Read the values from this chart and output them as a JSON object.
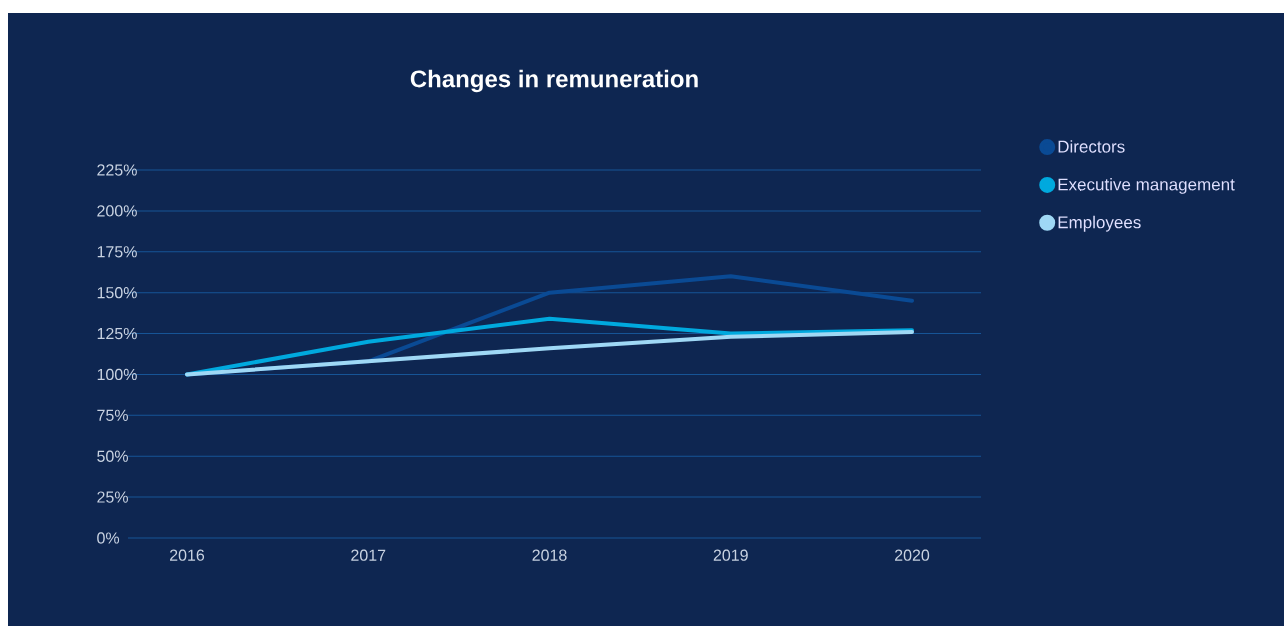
{
  "chart_data": {
    "type": "line",
    "title": "Changes in remuneration",
    "categories": [
      "2016",
      "2017",
      "2018",
      "2019",
      "2020"
    ],
    "series": [
      {
        "name": "Directors",
        "color": "#0a4a94",
        "values": [
          100,
          108,
          150,
          160,
          145
        ]
      },
      {
        "name": "Executive management",
        "color": "#00a9de",
        "values": [
          100,
          120,
          134,
          125,
          127
        ]
      },
      {
        "name": "Employees",
        "color": "#9fd8f5",
        "values": [
          100,
          108,
          116,
          123,
          126
        ]
      }
    ],
    "ylim": [
      0,
      225
    ],
    "yticks": [
      {
        "value": 0,
        "label": "0%"
      },
      {
        "value": 25,
        "label": "25%"
      },
      {
        "value": 50,
        "label": "50%"
      },
      {
        "value": 75,
        "label": "75%"
      },
      {
        "value": 100,
        "label": "100%"
      },
      {
        "value": 125,
        "label": "125%"
      },
      {
        "value": 150,
        "label": "150%"
      },
      {
        "value": 175,
        "label": "175%"
      },
      {
        "value": 200,
        "label": "200%"
      },
      {
        "value": 225,
        "label": "225%"
      }
    ],
    "grid": "y",
    "legend": "top right",
    "line_style": "solid"
  }
}
